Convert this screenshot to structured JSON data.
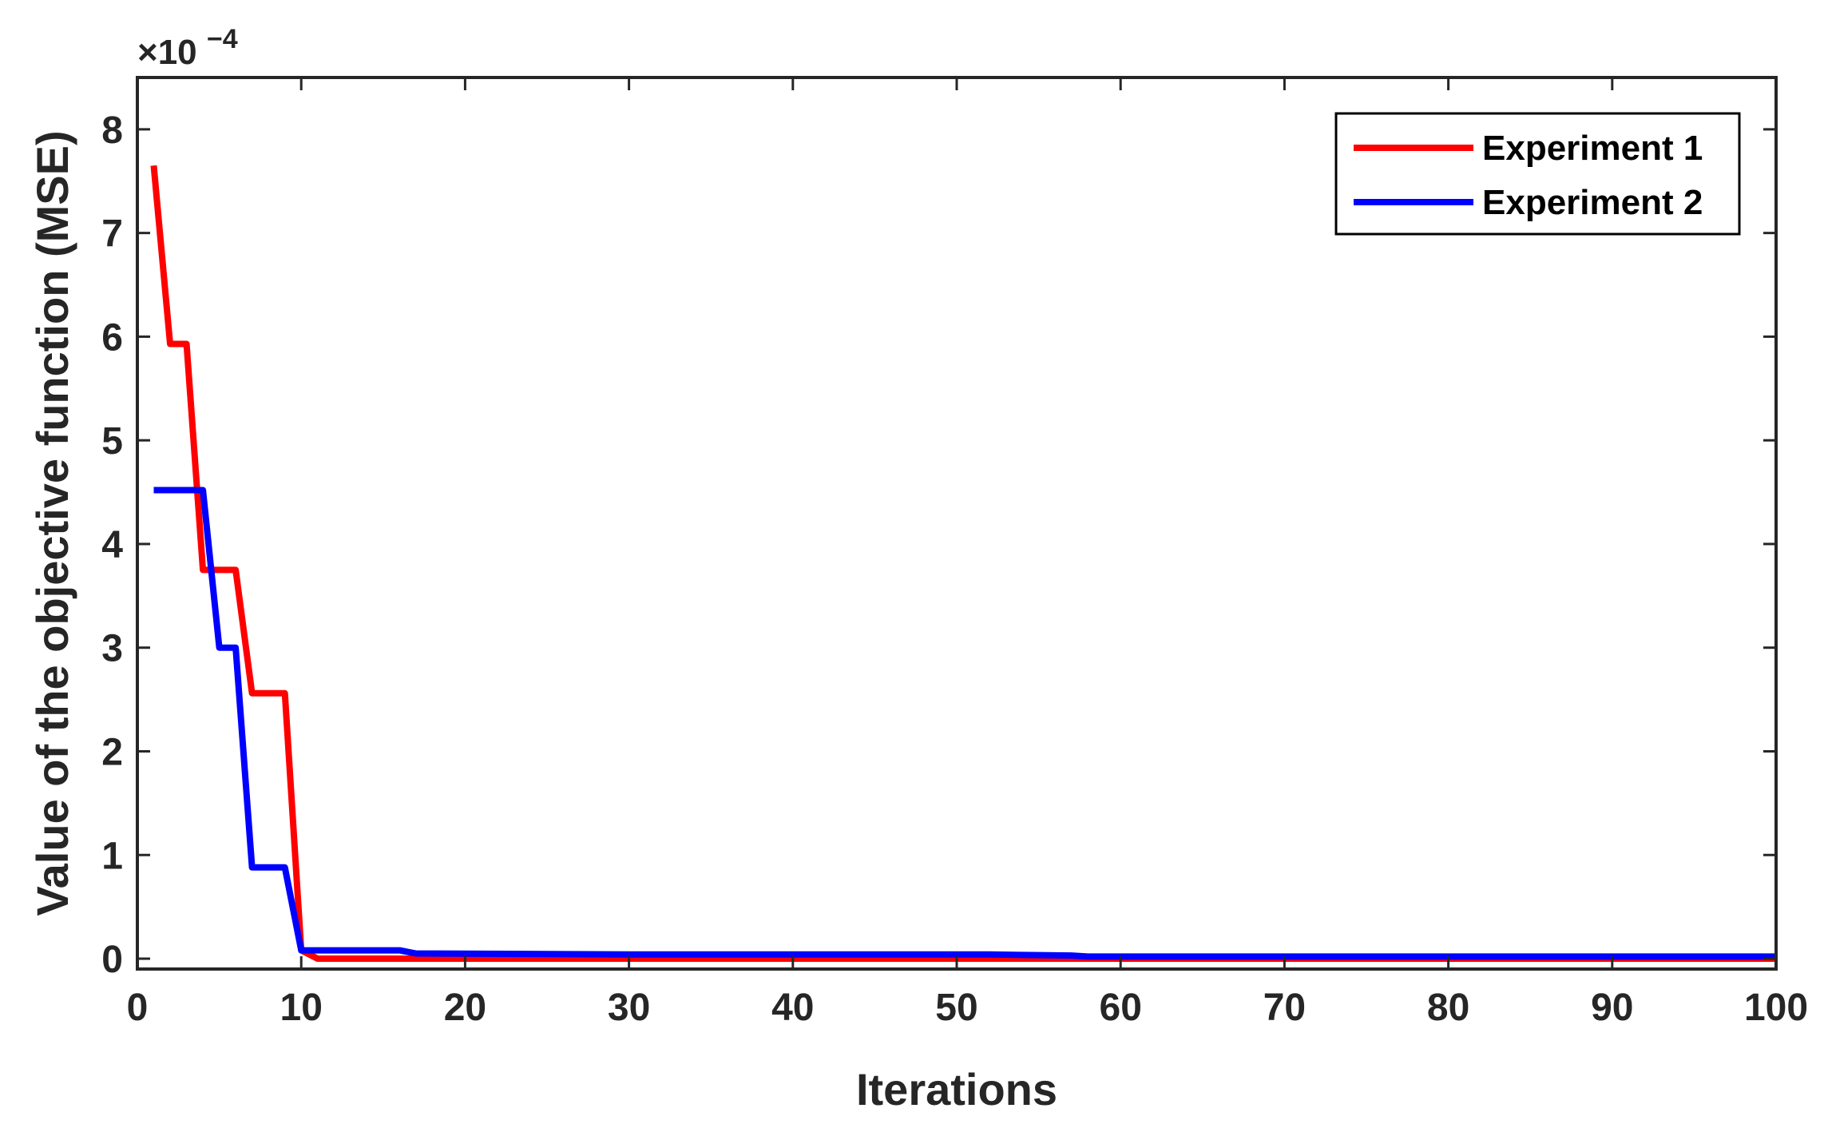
{
  "chart_data": {
    "type": "line",
    "xlabel": "Iterations",
    "ylabel": "Value of the objective function (MSE)",
    "xlim": [
      0,
      100
    ],
    "ylim": [
      -0.1,
      8.5
    ],
    "y_multiplier": {
      "base": "×10",
      "exponent": "−4"
    },
    "grid": false,
    "legend_placement": "top-right",
    "xticks": [
      0,
      10,
      20,
      30,
      40,
      50,
      60,
      70,
      80,
      90,
      100
    ],
    "xtick_labels": [
      "0",
      "10",
      "20",
      "30",
      "40",
      "50",
      "60",
      "70",
      "80",
      "90",
      "100"
    ],
    "yticks": [
      0,
      1,
      2,
      3,
      4,
      5,
      6,
      7,
      8
    ],
    "ytick_labels": [
      "0",
      "1",
      "2",
      "3",
      "4",
      "5",
      "6",
      "7",
      "8"
    ],
    "series": [
      {
        "name": "Experiment 1",
        "color": "#ff0000",
        "x": [
          1,
          2,
          3,
          4,
          5,
          6,
          7,
          8,
          9,
          10,
          11,
          20,
          30,
          40,
          50,
          60,
          70,
          80,
          90,
          100
        ],
        "values": [
          7.65,
          5.93,
          5.93,
          3.75,
          3.75,
          3.75,
          2.56,
          2.56,
          2.56,
          0.08,
          0.0,
          0.0,
          0.0,
          0.0,
          0.0,
          0.0,
          0.0,
          0.0,
          0.0,
          0.0
        ]
      },
      {
        "name": "Experiment 2",
        "color": "#0000ff",
        "x": [
          1,
          2,
          3,
          4,
          5,
          6,
          7,
          8,
          9,
          10,
          16,
          17,
          30,
          52,
          57,
          58,
          100
        ],
        "values": [
          4.52,
          4.52,
          4.52,
          4.52,
          3.0,
          3.0,
          0.88,
          0.88,
          0.88,
          0.08,
          0.08,
          0.05,
          0.04,
          0.04,
          0.03,
          0.02,
          0.02
        ]
      }
    ]
  }
}
